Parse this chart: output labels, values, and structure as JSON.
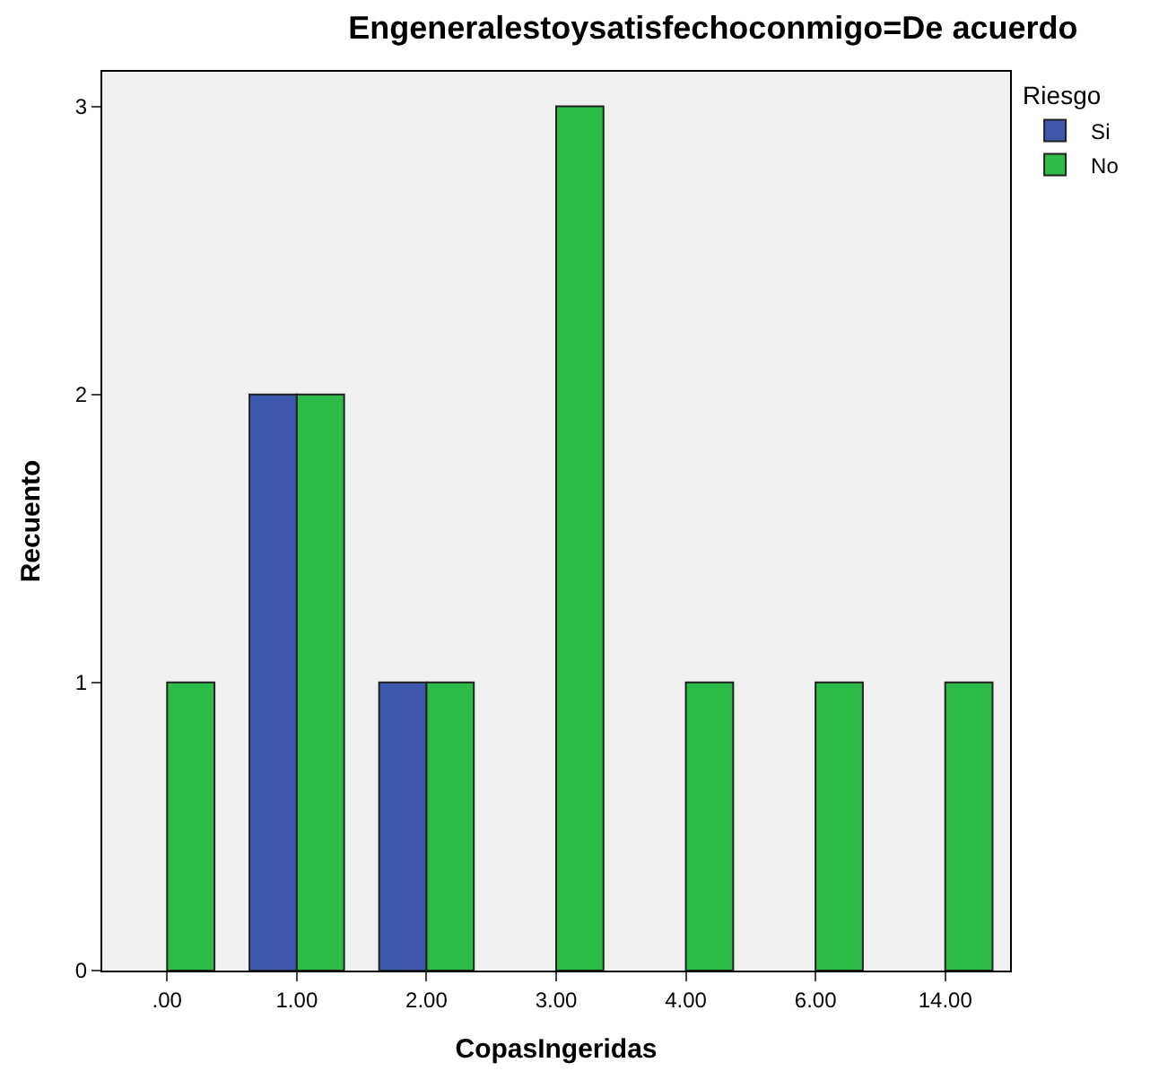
{
  "chart_data": {
    "type": "bar",
    "title": "Engeneralestoysatisfechoconmigo=De acuerdo",
    "xlabel": "CopasIngeridas",
    "ylabel": "Recuento",
    "legend_title": "Riesgo",
    "categories": [
      ".00",
      "1.00",
      "2.00",
      "3.00",
      "4.00",
      "6.00",
      "14.00"
    ],
    "series": [
      {
        "name": "Si",
        "color": "#3e58ac",
        "values": [
          null,
          2,
          1,
          null,
          null,
          null,
          null
        ]
      },
      {
        "name": "No",
        "color": "#2dbb48",
        "values": [
          1,
          2,
          1,
          3,
          1,
          1,
          1
        ]
      }
    ],
    "ylim": [
      0,
      3.12
    ],
    "yticks": [
      0,
      1,
      2,
      3
    ],
    "grid": false,
    "legend": "top right"
  }
}
